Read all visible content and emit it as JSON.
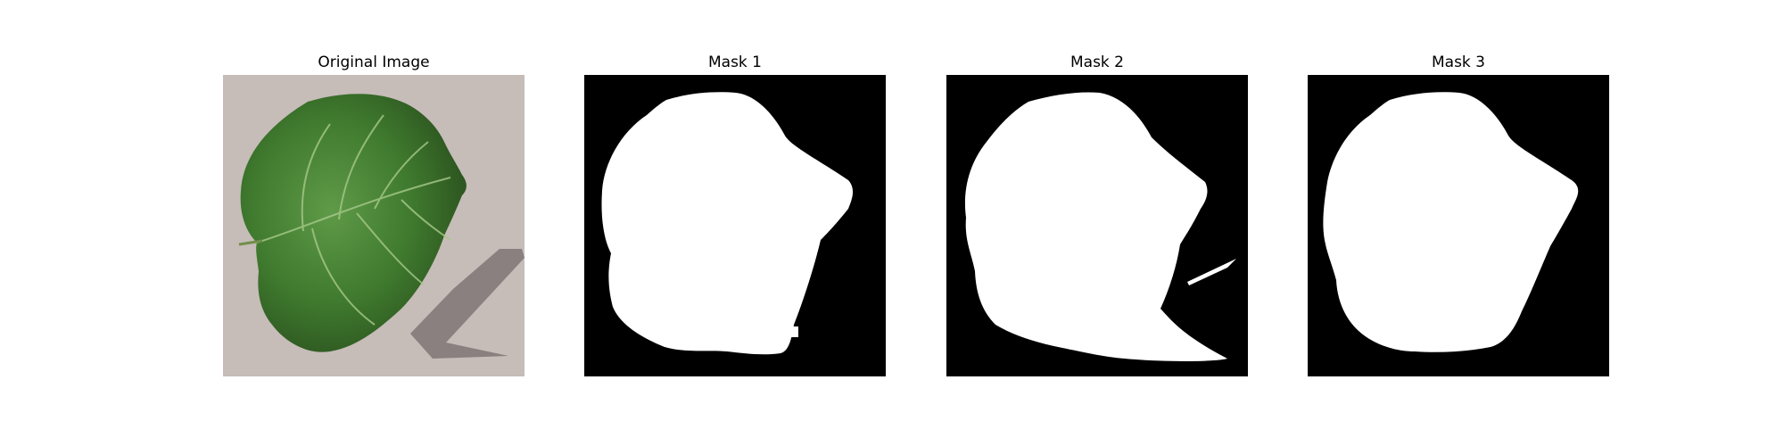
{
  "panels": [
    {
      "title": "Original Image"
    },
    {
      "title": "Mask 1"
    },
    {
      "title": "Mask 2"
    },
    {
      "title": "Mask 3"
    }
  ],
  "colors": {
    "background": "#ffffff",
    "mask_background": "#000000",
    "mask_foreground": "#ffffff",
    "photo_ground": "#c9bfbb",
    "leaf_dark": "#2f5a22",
    "leaf_mid": "#3f7a2e",
    "leaf_light": "#5f9a48",
    "shadow": "#7e7674"
  }
}
